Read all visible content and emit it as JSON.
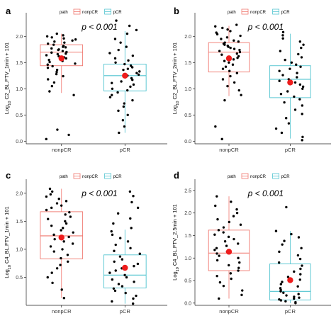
{
  "legend": {
    "title": "path",
    "items": [
      {
        "label": "nonpCR",
        "color": "#f0776e"
      },
      {
        "label": "pCR",
        "color": "#4ec3cf"
      }
    ]
  },
  "colors": {
    "nonpCR": "#f0776e",
    "pCR": "#4ec3cf",
    "points": "#000000",
    "mean": "#ee1c1c"
  },
  "chart_data": [
    {
      "panel": "a",
      "type": "box",
      "annotation": "p < 0.001",
      "ylabel_prefix": "Log",
      "ylabel_sub": "10",
      "ylabel_rest": " C2_BL.FTV_1min + 101",
      "categories": [
        "nonpCR",
        "pCR"
      ],
      "ylim": [
        -0.05,
        2.45
      ],
      "yticks": [
        0.0,
        0.5,
        1.0,
        1.5,
        2.0
      ],
      "ytick_labels": [
        "0.0",
        "0.5",
        "1.0",
        "1.5",
        "2.0"
      ],
      "grid": false,
      "series": [
        {
          "q1": 1.44,
          "median": 1.7,
          "q3": 1.84,
          "whisker_low": 0.92,
          "whisker_high": 2.05,
          "mean": 1.58,
          "points": [
            0.04,
            0.12,
            0.22,
            0.88,
            0.95,
            1.05,
            1.12,
            1.18,
            1.24,
            1.28,
            1.32,
            1.36,
            1.4,
            1.43,
            1.46,
            1.48,
            1.51,
            1.53,
            1.55,
            1.58,
            1.6,
            1.62,
            1.64,
            1.66,
            1.67,
            1.69,
            1.7,
            1.72,
            1.74,
            1.75,
            1.77,
            1.79,
            1.8,
            1.82,
            1.84,
            1.86,
            1.88,
            1.9,
            1.92,
            1.94,
            1.96,
            1.98,
            2.0,
            2.02,
            2.05
          ]
        },
        {
          "q1": 0.96,
          "median": 1.25,
          "q3": 1.47,
          "whisker_low": 0.16,
          "whisker_high": 2.1,
          "mean": 1.25,
          "points": [
            0.16,
            0.28,
            0.4,
            0.5,
            0.58,
            0.66,
            0.72,
            0.78,
            0.84,
            0.88,
            0.93,
            0.97,
            1.0,
            1.04,
            1.08,
            1.11,
            1.14,
            1.17,
            1.2,
            1.22,
            1.25,
            1.27,
            1.3,
            1.33,
            1.36,
            1.38,
            1.41,
            1.44,
            1.47,
            1.5,
            1.54,
            1.58,
            1.63,
            1.68,
            1.74,
            1.8,
            1.88,
            1.95,
            2.05,
            2.12,
            2.2,
            2.3
          ]
        }
      ]
    },
    {
      "panel": "b",
      "type": "box",
      "annotation": "p < 0.001",
      "ylabel_prefix": "Log",
      "ylabel_sub": "10",
      "ylabel_rest": " C2_BL.FTV_2min + 101",
      "categories": [
        "nonpCR",
        "pCR"
      ],
      "ylim": [
        -0.05,
        2.45
      ],
      "yticks": [
        0.0,
        0.5,
        1.0,
        1.5,
        2.0
      ],
      "ytick_labels": [
        "0.0",
        "0.5",
        "1.0",
        "1.5",
        "2.0"
      ],
      "grid": false,
      "series": [
        {
          "q1": 1.32,
          "median": 1.7,
          "q3": 1.88,
          "whisker_low": 0.86,
          "whisker_high": 2.2,
          "mean": 1.58,
          "points": [
            0.04,
            0.28,
            0.78,
            0.88,
            0.97,
            1.05,
            1.12,
            1.18,
            1.24,
            1.3,
            1.34,
            1.38,
            1.42,
            1.46,
            1.5,
            1.53,
            1.56,
            1.59,
            1.62,
            1.65,
            1.67,
            1.7,
            1.72,
            1.74,
            1.76,
            1.78,
            1.8,
            1.82,
            1.84,
            1.86,
            1.88,
            1.9,
            1.92,
            1.95,
            1.98,
            2.01,
            2.04,
            2.07,
            2.1,
            2.13,
            2.16,
            2.19,
            2.22
          ]
        },
        {
          "q1": 0.83,
          "median": 1.18,
          "q3": 1.44,
          "whisker_low": 0.05,
          "whisker_high": 2.05,
          "mean": 1.12,
          "points": [
            0.02,
            0.08,
            0.16,
            0.24,
            0.34,
            0.44,
            0.52,
            0.6,
            0.68,
            0.74,
            0.8,
            0.85,
            0.9,
            0.95,
            1.0,
            1.04,
            1.08,
            1.12,
            1.15,
            1.18,
            1.22,
            1.26,
            1.3,
            1.34,
            1.38,
            1.42,
            1.46,
            1.5,
            1.55,
            1.6,
            1.66,
            1.72,
            1.78,
            1.84,
            1.9,
            1.96,
            2.02,
            2.08
          ]
        }
      ]
    },
    {
      "panel": "c",
      "type": "box",
      "annotation": "p < 0.001",
      "ylabel_prefix": "Log",
      "ylabel_sub": "10",
      "ylabel_rest": " C4_BL.FTV_1min + 101",
      "categories": [
        "nonpCR",
        "pCR"
      ],
      "ylim": [
        0.0,
        2.25
      ],
      "yticks": [
        0.5,
        1.0,
        1.5,
        2.0
      ],
      "ytick_labels": [
        "0.5",
        "1.0",
        "1.5",
        "2.0"
      ],
      "grid": false,
      "series": [
        {
          "q1": 0.83,
          "median": 1.24,
          "q3": 1.67,
          "whisker_low": 0.13,
          "whisker_high": 2.08,
          "mean": 1.21,
          "points": [
            0.13,
            0.28,
            0.4,
            0.5,
            0.58,
            0.66,
            0.72,
            0.78,
            0.84,
            0.9,
            0.96,
            1.0,
            1.05,
            1.1,
            1.14,
            1.18,
            1.22,
            1.26,
            1.3,
            1.34,
            1.38,
            1.42,
            1.46,
            1.5,
            1.54,
            1.58,
            1.62,
            1.66,
            1.7,
            1.74,
            1.78,
            1.82,
            1.86,
            1.9,
            1.94,
            1.98,
            2.03,
            2.08
          ]
        },
        {
          "q1": 0.31,
          "median": 0.54,
          "q3": 0.9,
          "whisker_low": 0.03,
          "whisker_high": 1.35,
          "mean": 0.67,
          "points": [
            0.03,
            0.07,
            0.12,
            0.17,
            0.22,
            0.26,
            0.3,
            0.34,
            0.38,
            0.42,
            0.46,
            0.5,
            0.54,
            0.58,
            0.62,
            0.66,
            0.7,
            0.74,
            0.78,
            0.82,
            0.87,
            0.92,
            0.97,
            1.02,
            1.08,
            1.14,
            1.2,
            1.26,
            1.32,
            1.38,
            1.46,
            1.55,
            1.64,
            1.74,
            1.84,
            1.95,
            2.03
          ]
        }
      ]
    },
    {
      "panel": "d",
      "type": "box",
      "annotation": "p < 0.001",
      "ylabel_prefix": "Log",
      "ylabel_sub": "10",
      "ylabel_rest": " C4_BL.FTV_2.5min + 101",
      "categories": [
        "nonpCR",
        "pCR"
      ],
      "ylim": [
        -0.05,
        2.75
      ],
      "yticks": [
        0.0,
        0.5,
        1.0,
        1.5,
        2.0,
        2.5
      ],
      "ytick_labels": [
        "0.0",
        "0.5",
        "1.0",
        "1.5",
        "2.0",
        "2.5"
      ],
      "grid": false,
      "series": [
        {
          "q1": 0.72,
          "median": 1.11,
          "q3": 1.62,
          "whisker_low": 0.1,
          "whisker_high": 2.37,
          "mean": 1.14,
          "points": [
            0.1,
            0.18,
            0.28,
            0.38,
            0.46,
            0.54,
            0.6,
            0.66,
            0.72,
            0.78,
            0.84,
            0.9,
            0.95,
            1.0,
            1.05,
            1.1,
            1.14,
            1.18,
            1.22,
            1.27,
            1.32,
            1.37,
            1.42,
            1.47,
            1.52,
            1.57,
            1.62,
            1.68,
            1.74,
            1.8,
            1.86,
            1.93,
            2.0,
            2.08,
            2.16,
            2.25,
            2.37
          ]
        },
        {
          "q1": 0.07,
          "median": 0.26,
          "q3": 0.87,
          "whisker_low": 0.0,
          "whisker_high": 1.6,
          "mean": 0.51,
          "points": [
            0.0,
            0.02,
            0.04,
            0.06,
            0.08,
            0.1,
            0.12,
            0.14,
            0.17,
            0.2,
            0.23,
            0.26,
            0.29,
            0.33,
            0.37,
            0.42,
            0.47,
            0.52,
            0.58,
            0.64,
            0.7,
            0.76,
            0.83,
            0.9,
            0.98,
            1.06,
            1.14,
            1.22,
            1.3,
            1.38,
            1.46,
            1.53,
            1.6,
            2.13
          ]
        }
      ]
    }
  ]
}
